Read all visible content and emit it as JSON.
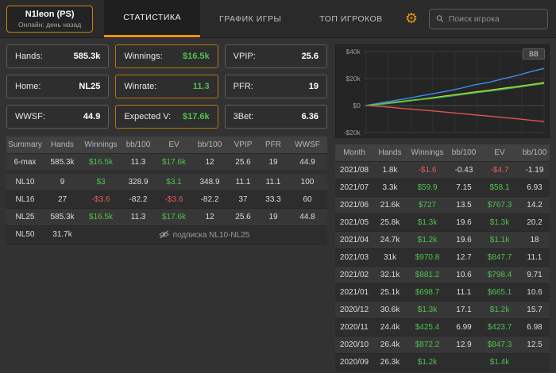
{
  "colors": {
    "accent_orange": "#e8920a",
    "positive_green": "#4ec04e",
    "negative_red": "#e05c5c"
  },
  "header": {
    "player": {
      "name": "N1leon (PS)",
      "status": "Онлайн: день назад"
    },
    "tabs": [
      {
        "id": "statistics",
        "label": "СТАТИСТИКА",
        "active": true
      },
      {
        "id": "game-graph",
        "label": "ГРАФИК ИГРЫ",
        "active": false
      },
      {
        "id": "top-players",
        "label": "ТОП ИГРОКОВ",
        "active": false
      }
    ],
    "search": {
      "placeholder": "Поиск игрока"
    }
  },
  "stats": [
    {
      "name": "hands",
      "label": "Hands:",
      "value": "585.3k",
      "highlight": false,
      "green": false
    },
    {
      "name": "winnings",
      "label": "Winnings:",
      "value": "$16.5k",
      "highlight": true,
      "green": true
    },
    {
      "name": "vpip",
      "label": "VPIP:",
      "value": "25.6",
      "highlight": false,
      "green": false
    },
    {
      "name": "home",
      "label": "Home:",
      "value": "NL25",
      "highlight": false,
      "green": false
    },
    {
      "name": "winrate",
      "label": "Winrate:",
      "value": "11.3",
      "highlight": true,
      "green": true
    },
    {
      "name": "pfr",
      "label": "PFR:",
      "value": "19",
      "highlight": false,
      "green": false
    },
    {
      "name": "wwsf",
      "label": "WWSF:",
      "value": "44.9",
      "highlight": false,
      "green": false
    },
    {
      "name": "expected-value",
      "label": "Expected V:",
      "value": "$17.6k",
      "highlight": true,
      "green": true
    },
    {
      "name": "3bet",
      "label": "3Bet:",
      "value": "6.36",
      "highlight": false,
      "green": false
    }
  ],
  "left_table": {
    "headers": [
      "Summary",
      "Hands",
      "Winnings",
      "bb/100",
      "EV",
      "bb/100",
      "VPIP",
      "PFR",
      "WWSF"
    ],
    "summary_row": [
      "6-max",
      "585.3k",
      "$16.5k",
      "11.3",
      "$17.6k",
      "12",
      "25.6",
      "19",
      "44.9"
    ],
    "rows": [
      [
        "NL10",
        "9",
        "$3",
        "328.9",
        "$3.1",
        "348.9",
        "11.1",
        "11.1",
        "100"
      ],
      [
        "NL16",
        "27",
        "-$3.6",
        "-82.2",
        "-$3.6",
        "-82.2",
        "37",
        "33.3",
        "60"
      ],
      [
        "NL25",
        "585.3k",
        "$16.5k",
        "11.3",
        "$17.6k",
        "12",
        "25.6",
        "19",
        "44.8"
      ]
    ],
    "locked_row": {
      "label": "NL50",
      "hands": "31.7k",
      "note": "подписка NL10-NL25"
    }
  },
  "chart": {
    "type": "line",
    "badge": "BB",
    "ylim": [
      -20000,
      40000
    ],
    "yticks": [
      {
        "label": "$40k",
        "value": 40000
      },
      {
        "label": "$20k",
        "value": 20000
      },
      {
        "label": "$0",
        "value": 0
      },
      {
        "label": "-$20k",
        "value": -20000
      }
    ],
    "series": [
      {
        "name": "blue-line",
        "color": "#3d8ef0",
        "values": [
          0,
          1800,
          3600,
          5200,
          7200,
          9000,
          10800,
          13000,
          15500,
          17200,
          19800,
          22200,
          25000,
          27500
        ]
      },
      {
        "name": "yellow-line",
        "color": "#c6d93a",
        "values": [
          0,
          1000,
          2400,
          3600,
          4700,
          6000,
          7400,
          8700,
          10100,
          11400,
          12700,
          14100,
          15500,
          17000
        ]
      },
      {
        "name": "green-line",
        "color": "#3fbf4a",
        "values": [
          0,
          800,
          2000,
          3200,
          4400,
          5500,
          6800,
          8100,
          9400,
          10700,
          12000,
          13400,
          14900,
          16300
        ]
      },
      {
        "name": "red-line",
        "color": "#e05555",
        "values": [
          0,
          -600,
          -1500,
          -2400,
          -3200,
          -4100,
          -5000,
          -6000,
          -6900,
          -7800,
          -8800,
          -9700,
          -10800,
          -11800
        ]
      }
    ]
  },
  "right_table": {
    "headers": [
      "Month",
      "Hands",
      "Winnings",
      "bb/100",
      "EV",
      "bb/100"
    ],
    "rows": [
      [
        "2021/08",
        "1.8k",
        "-$1.6",
        "-0.43",
        "-$4.7",
        "-1.19"
      ],
      [
        "2021/07",
        "3.3k",
        "$59.9",
        "7.15",
        "$58.1",
        "6.93"
      ],
      [
        "2021/06",
        "21.6k",
        "$727",
        "13.5",
        "$767.3",
        "14.2"
      ],
      [
        "2021/05",
        "25.8k",
        "$1.3k",
        "19.6",
        "$1.3k",
        "20.2"
      ],
      [
        "2021/04",
        "24.7k",
        "$1.2k",
        "19.6",
        "$1.1k",
        "18"
      ],
      [
        "2021/03",
        "31k",
        "$970.8",
        "12.7",
        "$847.7",
        "11.1"
      ],
      [
        "2021/02",
        "32.1k",
        "$881.2",
        "10.6",
        "$798.4",
        "9.71"
      ],
      [
        "2021/01",
        "25.1k",
        "$698.7",
        "11.1",
        "$665.1",
        "10.6"
      ],
      [
        "2020/12",
        "30.6k",
        "$1.3k",
        "17.1",
        "$1.2k",
        "15.7"
      ],
      [
        "2020/11",
        "24.4k",
        "$425.4",
        "6.99",
        "$423.7",
        "6.98"
      ],
      [
        "2020/10",
        "26.4k",
        "$872.2",
        "12.9",
        "$847.3",
        "12.5"
      ],
      [
        "2020/09",
        "26.3k",
        "$1.2k",
        "",
        "$1.4k",
        ""
      ]
    ]
  }
}
